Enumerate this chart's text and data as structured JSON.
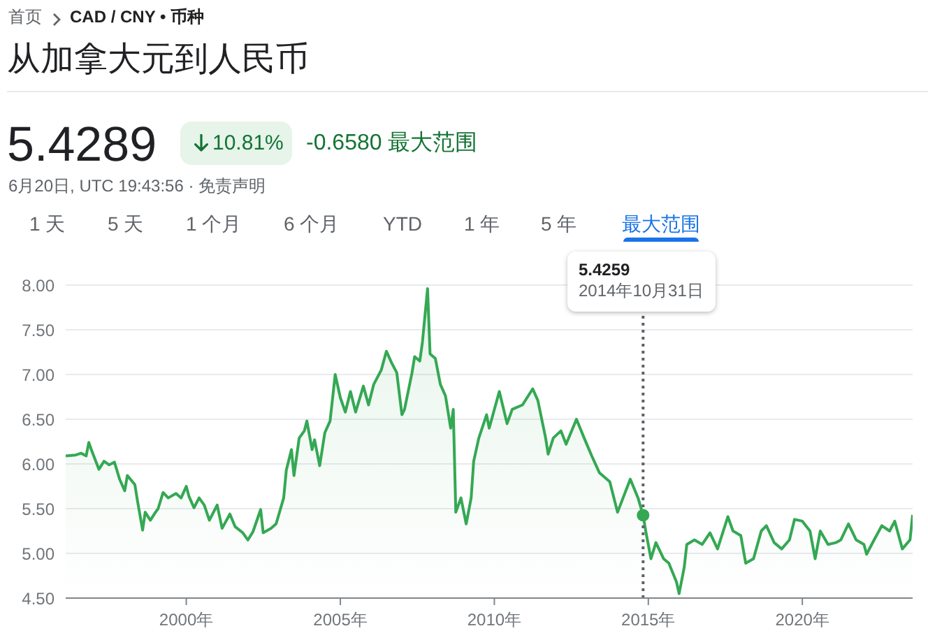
{
  "chart_data": {
    "type": "area",
    "title": "从加拿大元到人民币",
    "annotations": [
      "首页",
      "CAD / CNY • 币种",
      "5.4289",
      "10.81%",
      "-0.6580 最大范围",
      "6月20日, UTC 19:43:56 · 免责声明",
      "1 天",
      "5 天",
      "1 个月",
      "6 个月",
      "YTD",
      "1 年",
      "5 年",
      "最大范围",
      "5.4259",
      "2014年10月31日"
    ],
    "x": [
      "1996-02",
      "1996-06",
      "1996-08",
      "1996-10",
      "1996-11",
      "1996-12",
      "1997-03",
      "1997-05",
      "1997-07",
      "1997-09",
      "1997-11",
      "1998-01",
      "1998-02",
      "1998-05",
      "1998-06",
      "1998-08",
      "1998-09",
      "1998-11",
      "1999-01",
      "1999-02",
      "1999-04",
      "1999-06",
      "1999-09",
      "1999-11",
      "2000-01",
      "2000-02",
      "2000-04",
      "2000-06",
      "2000-08",
      "2000-10",
      "2001-01",
      "2001-03",
      "2001-06",
      "2001-08",
      "2001-11",
      "2002-01",
      "2002-03",
      "2002-06",
      "2002-07",
      "2002-10",
      "2002-12",
      "2003-03",
      "2003-04",
      "2003-06",
      "2003-07",
      "2003-09",
      "2003-11",
      "2003-12",
      "2004-02",
      "2004-03",
      "2004-05",
      "2004-07",
      "2004-09",
      "2004-11",
      "2005-01",
      "2005-03",
      "2005-05",
      "2005-07",
      "2005-10",
      "2005-12",
      "2006-02",
      "2006-05",
      "2006-07",
      "2006-09",
      "2006-11",
      "2007-01",
      "2007-02",
      "2007-05",
      "2007-06",
      "2007-08",
      "2007-09",
      "2007-11",
      "2007-12",
      "2008-02",
      "2008-04",
      "2008-06",
      "2008-08",
      "2008-09",
      "2008-10",
      "2008-12",
      "2009-02",
      "2009-04",
      "2009-05",
      "2009-07",
      "2009-10",
      "2009-11",
      "2010-03",
      "2010-06",
      "2010-08",
      "2010-12",
      "2011-04",
      "2011-06",
      "2011-09",
      "2011-10",
      "2011-12",
      "2012-03",
      "2012-05",
      "2012-09",
      "2012-12",
      "2013-03",
      "2013-06",
      "2013-10",
      "2014-01",
      "2014-06",
      "2014-09",
      "2014-10-31",
      "2014-12",
      "2015-02",
      "2015-04",
      "2015-07",
      "2015-09",
      "2015-12",
      "2016-01",
      "2016-03",
      "2016-04",
      "2016-07",
      "2016-10",
      "2017-01",
      "2017-04",
      "2017-08",
      "2017-10",
      "2018-01",
      "2018-03",
      "2018-06",
      "2018-09",
      "2018-11",
      "2019-02",
      "2019-05",
      "2019-08",
      "2019-10",
      "2020-01",
      "2020-04",
      "2020-06",
      "2020-08",
      "2020-11",
      "2021-02",
      "2021-04",
      "2021-07",
      "2021-10",
      "2022-01",
      "2022-02",
      "2022-05",
      "2022-08",
      "2022-11",
      "2023-01",
      "2023-04",
      "2023-07",
      "2023-08"
    ],
    "series": [
      {
        "color": "#34a853",
        "values": [
          6.09,
          6.1,
          6.12,
          6.09,
          6.24,
          6.16,
          5.94,
          6.03,
          5.99,
          6.02,
          5.83,
          5.7,
          5.87,
          5.77,
          5.59,
          5.26,
          5.46,
          5.37,
          5.46,
          5.5,
          5.68,
          5.62,
          5.67,
          5.62,
          5.75,
          5.64,
          5.51,
          5.62,
          5.54,
          5.37,
          5.54,
          5.28,
          5.44,
          5.3,
          5.23,
          5.15,
          5.24,
          5.49,
          5.23,
          5.28,
          5.33,
          5.62,
          5.93,
          6.16,
          5.87,
          6.29,
          6.37,
          6.48,
          6.16,
          6.27,
          5.98,
          6.35,
          6.48,
          7.0,
          6.74,
          6.58,
          6.81,
          6.58,
          6.87,
          6.66,
          6.89,
          7.05,
          7.26,
          7.13,
          7.02,
          6.55,
          6.61,
          7.02,
          7.2,
          7.15,
          7.36,
          7.96,
          7.23,
          7.18,
          6.89,
          6.76,
          6.4,
          6.61,
          5.46,
          5.62,
          5.33,
          5.62,
          6.03,
          6.29,
          6.55,
          6.4,
          6.81,
          6.45,
          6.61,
          6.66,
          6.84,
          6.71,
          6.29,
          6.11,
          6.29,
          6.37,
          6.22,
          6.5,
          6.29,
          6.09,
          5.9,
          5.8,
          5.46,
          5.83,
          5.62,
          5.4259,
          5.25,
          4.94,
          5.12,
          4.94,
          4.89,
          4.68,
          4.55,
          4.84,
          5.1,
          5.15,
          5.1,
          5.23,
          5.05,
          5.41,
          5.25,
          5.2,
          4.89,
          4.94,
          5.25,
          5.31,
          5.12,
          5.05,
          5.15,
          5.38,
          5.36,
          5.25,
          4.94,
          5.25,
          5.1,
          5.12,
          5.15,
          5.33,
          5.15,
          5.1,
          4.99,
          5.15,
          5.31,
          5.25,
          5.36,
          5.05,
          5.15,
          5.43
        ]
      },
      {
        "type": "scatter",
        "x": [
          "2014-10-31"
        ],
        "values": [
          5.4259
        ],
        "color": "#34a853"
      }
    ],
    "xlim": [
      "1996-02",
      "2023-08"
    ],
    "xticks": [
      {
        "value": "2000",
        "label": "2000年"
      },
      {
        "value": "2005",
        "label": "2005年"
      },
      {
        "value": "2010",
        "label": "2010年"
      },
      {
        "value": "2015",
        "label": "2015年"
      },
      {
        "value": "2020",
        "label": "2020年"
      }
    ],
    "ylim": [
      4.5,
      8.0
    ],
    "yticks": [
      {
        "value": 4.5,
        "label": "4.50"
      },
      {
        "value": 5,
        "label": "5.00"
      },
      {
        "value": 5.5,
        "label": "5.50"
      },
      {
        "value": 6,
        "label": "6.00"
      },
      {
        "value": 6.5,
        "label": "6.50"
      },
      {
        "value": 7,
        "label": "7.00"
      },
      {
        "value": 7.5,
        "label": "7.50"
      },
      {
        "value": 8,
        "label": "8.00"
      }
    ],
    "grid": "y",
    "ref_lines": [
      {
        "axis": "x",
        "value": "2014-10-31",
        "line_style": "dotted",
        "color": "#5f6368"
      }
    ]
  }
}
